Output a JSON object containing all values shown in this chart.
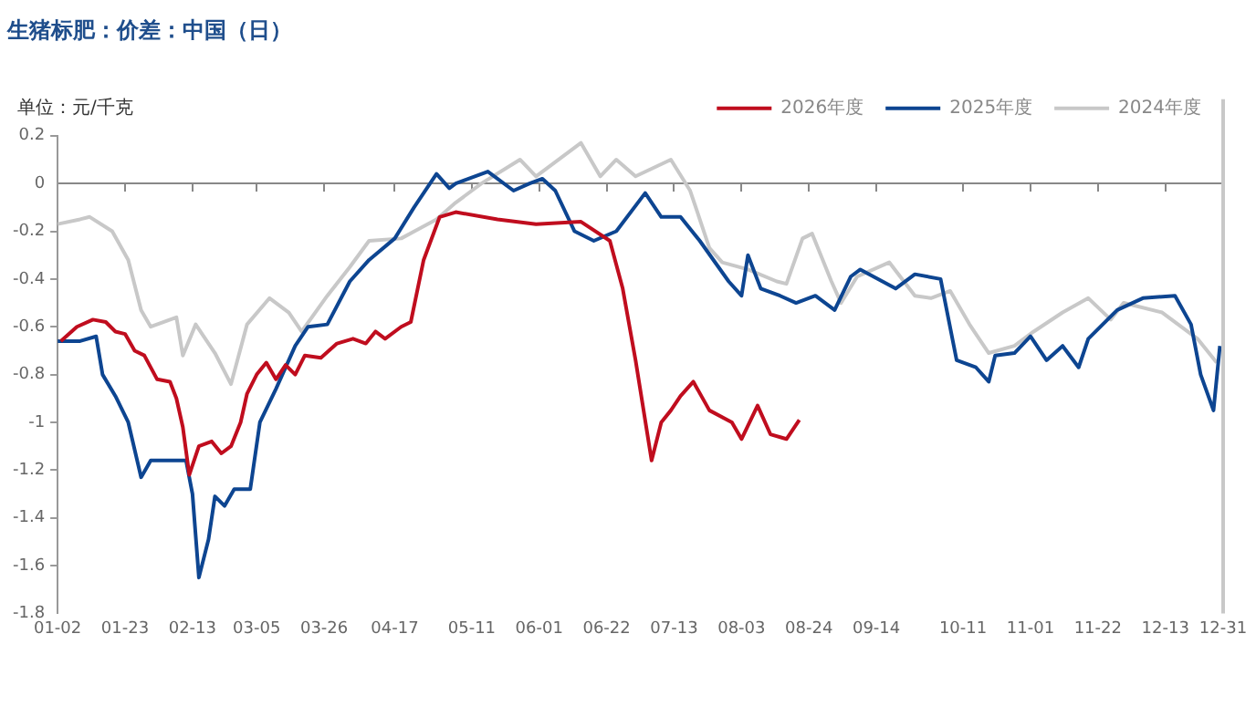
{
  "chart_data": {
    "type": "line",
    "title": "生猪标肥：价差：中国（日）",
    "ylabel": "单位：元/千克",
    "legend": "top right",
    "marker": "none",
    "line_style": "solid",
    "xlim": [
      "--01-02",
      "--12-31"
    ],
    "xticks": [
      {
        "value": "--01-02",
        "label": "01-02"
      },
      {
        "value": "--01-23",
        "label": "01-23"
      },
      {
        "value": "--02-13",
        "label": "02-13"
      },
      {
        "value": "--03-05",
        "label": "03-05"
      },
      {
        "value": "--03-26",
        "label": "03-26"
      },
      {
        "value": "--04-17",
        "label": "04-17"
      },
      {
        "value": "--05-11",
        "label": "05-11"
      },
      {
        "value": "--06-01",
        "label": "06-01"
      },
      {
        "value": "--06-22",
        "label": "06-22"
      },
      {
        "value": "--07-13",
        "label": "07-13"
      },
      {
        "value": "--08-03",
        "label": "08-03"
      },
      {
        "value": "--08-24",
        "label": "08-24"
      },
      {
        "value": "--09-14",
        "label": "09-14"
      },
      {
        "value": "--10-11",
        "label": "10-11"
      },
      {
        "value": "--11-01",
        "label": "11-01"
      },
      {
        "value": "--11-22",
        "label": "11-22"
      },
      {
        "value": "--12-13",
        "label": "12-13"
      },
      {
        "value": "--12-31",
        "label": "12-31"
      }
    ],
    "ylim": [
      -1.8,
      0.2
    ],
    "yticks": [
      -1.8,
      -1.6,
      -1.4,
      -1.2,
      -1,
      -0.8,
      -0.6,
      -0.4,
      -0.2,
      0,
      0.2
    ],
    "ref_lines": [
      {
        "axis": "x",
        "value": "--12-31",
        "color": "#c8c8c8"
      }
    ],
    "series": [
      {
        "name": "2026年度",
        "color": "#c00d1e",
        "x": [
          "--01-03",
          "--01-08",
          "--01-13",
          "--01-17",
          "--01-20",
          "--01-23",
          "--01-26",
          "--01-29",
          "--02-02",
          "--02-06",
          "--02-08",
          "--02-10",
          "--02-12",
          "--02-15",
          "--02-19",
          "--02-22",
          "--02-25",
          "--02-28",
          "--03-02",
          "--03-05",
          "--03-08",
          "--03-11",
          "--03-14",
          "--03-17",
          "--03-20",
          "--03-25",
          "--03-30",
          "--04-04",
          "--04-08",
          "--04-11",
          "--04-14",
          "--04-19",
          "--04-22",
          "--04-26",
          "--05-01",
          "--05-06",
          "--05-19",
          "--05-31",
          "--06-14",
          "--06-23",
          "--06-27",
          "--07-01",
          "--07-06",
          "--07-09",
          "--07-12",
          "--07-15",
          "--07-19",
          "--07-24",
          "--07-31",
          "--08-03",
          "--08-08",
          "--08-12",
          "--08-17",
          "--08-21"
        ],
        "values": [
          -0.66,
          -0.6,
          -0.57,
          -0.58,
          -0.62,
          -0.63,
          -0.7,
          -0.72,
          -0.82,
          -0.83,
          -0.9,
          -1.02,
          -1.22,
          -1.1,
          -1.08,
          -1.13,
          -1.1,
          -1,
          -0.88,
          -0.8,
          -0.75,
          -0.82,
          -0.76,
          -0.8,
          -0.72,
          -0.73,
          -0.67,
          -0.65,
          -0.67,
          -0.62,
          -0.65,
          -0.6,
          -0.58,
          -0.32,
          -0.14,
          -0.12,
          -0.15,
          -0.17,
          -0.16,
          -0.24,
          -0.44,
          -0.74,
          -1.16,
          -1,
          -0.95,
          -0.89,
          -0.83,
          -0.95,
          -1,
          -1.07,
          -0.93,
          -1.05,
          -1.07,
          -0.99
        ]
      },
      {
        "name": "2025年度",
        "color": "#0d4591",
        "x": [
          "--01-02",
          "--01-09",
          "--01-14",
          "--01-16",
          "--01-20",
          "--01-24",
          "--01-28",
          "--01-31",
          "--02-11",
          "--02-13",
          "--02-15",
          "--02-18",
          "--02-20",
          "--02-23",
          "--02-26",
          "--03-03",
          "--03-06",
          "--03-11",
          "--03-17",
          "--03-21",
          "--03-27",
          "--04-03",
          "--04-09",
          "--04-17",
          "--04-23",
          "--04-30",
          "--05-04",
          "--05-06",
          "--05-16",
          "--05-24",
          "--05-29",
          "--06-02",
          "--06-06",
          "--06-12",
          "--06-18",
          "--06-25",
          "--07-04",
          "--07-09",
          "--07-15",
          "--07-21",
          "--07-30",
          "--08-03",
          "--08-05",
          "--08-09",
          "--08-15",
          "--08-20",
          "--08-26",
          "--09-01",
          "--09-06",
          "--09-09",
          "--09-20",
          "--09-26",
          "--10-04",
          "--10-09",
          "--10-15",
          "--10-19",
          "--10-21",
          "--10-27",
          "--11-01",
          "--11-06",
          "--11-11",
          "--11-16",
          "--11-19",
          "--11-28",
          "--12-06",
          "--12-16",
          "--12-21",
          "--12-24",
          "--12-28",
          "--12-30"
        ],
        "values": [
          -0.66,
          -0.66,
          -0.64,
          -0.8,
          -0.89,
          -1,
          -1.23,
          -1.16,
          -1.16,
          -1.3,
          -1.65,
          -1.49,
          -1.31,
          -1.35,
          -1.28,
          -1.28,
          -1,
          -0.86,
          -0.68,
          -0.6,
          -0.59,
          -0.41,
          -0.32,
          -0.23,
          -0.1,
          0.04,
          -0.02,
          0,
          0.05,
          -0.03,
          0,
          0.02,
          -0.03,
          -0.2,
          -0.24,
          -0.2,
          -0.04,
          -0.14,
          -0.14,
          -0.24,
          -0.41,
          -0.47,
          -0.3,
          -0.44,
          -0.47,
          -0.5,
          -0.47,
          -0.53,
          -0.39,
          -0.36,
          -0.44,
          -0.38,
          -0.4,
          -0.74,
          -0.77,
          -0.83,
          -0.72,
          -0.71,
          -0.64,
          -0.74,
          -0.68,
          -0.77,
          -0.65,
          -0.53,
          -0.48,
          -0.47,
          -0.59,
          -0.8,
          -0.95,
          -0.68
        ]
      },
      {
        "name": "2024年度",
        "color": "#c8c8c8",
        "x": [
          "--01-02",
          "--01-09",
          "--01-12",
          "--01-19",
          "--01-24",
          "--01-28",
          "--01-31",
          "--02-08",
          "--02-10",
          "--02-14",
          "--02-20",
          "--02-25",
          "--03-02",
          "--03-09",
          "--03-15",
          "--03-19",
          "--03-27",
          "--04-03",
          "--04-09",
          "--04-19",
          "--04-30",
          "--05-06",
          "--05-14",
          "--05-26",
          "--05-31",
          "--06-14",
          "--06-20",
          "--06-25",
          "--07-01",
          "--07-12",
          "--07-18",
          "--07-24",
          "--07-28",
          "--08-05",
          "--08-14",
          "--08-17",
          "--08-22",
          "--08-25",
          "--08-31",
          "--09-03",
          "--09-08",
          "--09-18",
          "--09-26",
          "--10-01",
          "--10-07",
          "--10-13",
          "--10-19",
          "--10-27",
          "--11-02",
          "--11-11",
          "--11-19",
          "--11-26",
          "--11-30",
          "--12-12",
          "--12-23",
          "--12-29"
        ],
        "values": [
          -0.17,
          -0.15,
          -0.14,
          -0.2,
          -0.32,
          -0.53,
          -0.6,
          -0.56,
          -0.72,
          -0.59,
          -0.71,
          -0.84,
          -0.59,
          -0.48,
          -0.54,
          -0.62,
          -0.47,
          -0.35,
          -0.24,
          -0.23,
          -0.15,
          -0.08,
          0,
          0.1,
          0.03,
          0.17,
          0.03,
          0.1,
          0.03,
          0.1,
          -0.03,
          -0.27,
          -0.33,
          -0.36,
          -0.41,
          -0.42,
          -0.23,
          -0.21,
          -0.41,
          -0.5,
          -0.39,
          -0.33,
          -0.47,
          -0.48,
          -0.45,
          -0.59,
          -0.71,
          -0.68,
          -0.62,
          -0.54,
          -0.48,
          -0.57,
          -0.5,
          -0.54,
          -0.65,
          -0.75
        ]
      }
    ]
  }
}
